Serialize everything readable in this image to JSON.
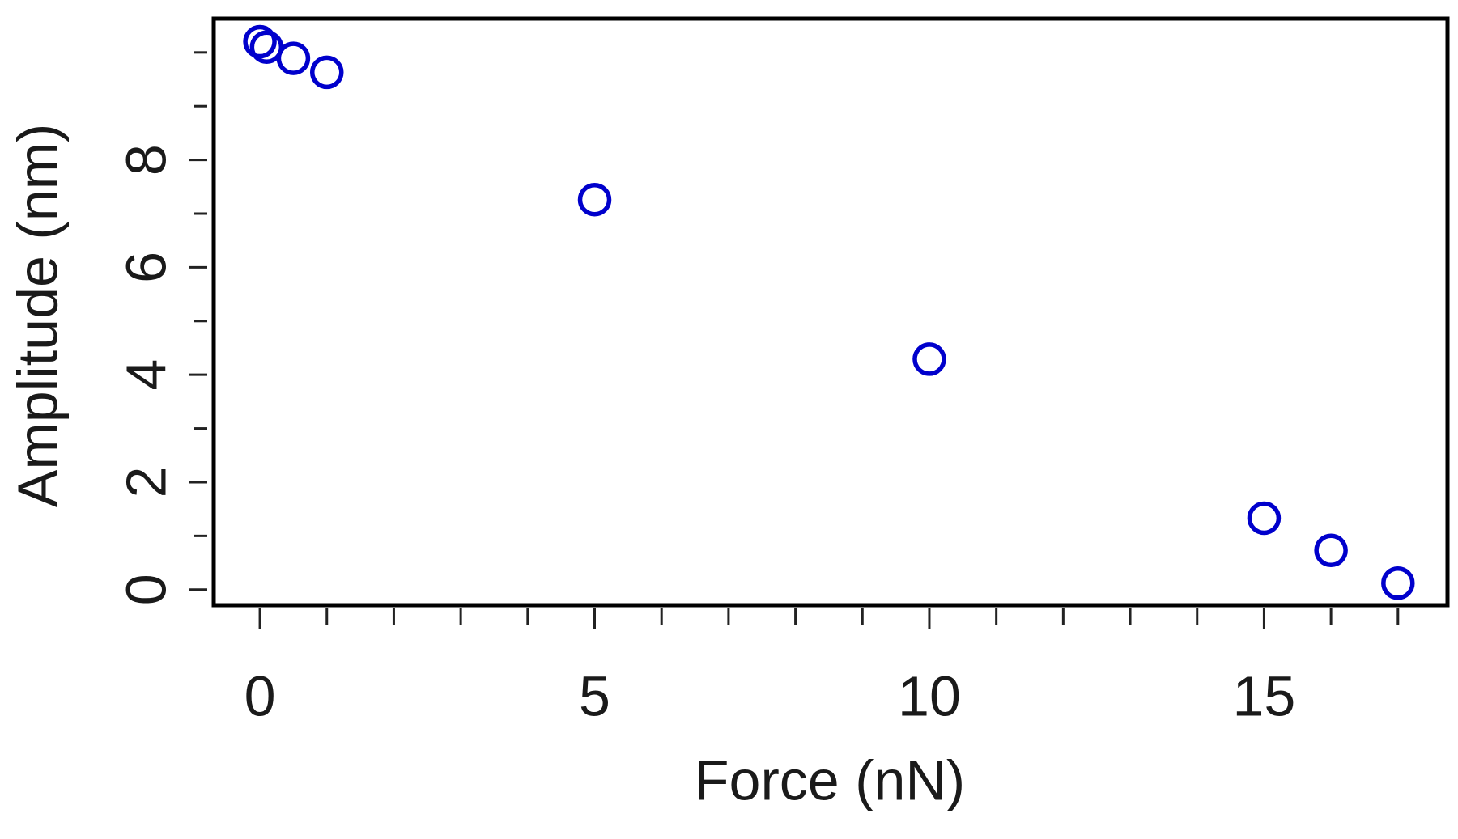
{
  "chart_data": {
    "type": "scatter",
    "x_label": "Force (nN)",
    "y_label": "Amplitude (nm)",
    "series": [
      {
        "color": "#0000cc",
        "x": [
          0,
          0.1,
          0.5,
          1,
          5,
          10,
          15,
          16,
          17
        ],
        "values": [
          10.2,
          10.1,
          9.89,
          9.63,
          7.26,
          4.29,
          1.33,
          0.73,
          0.12
        ]
      }
    ],
    "xlim": [
      -0.69,
      17.74
    ],
    "ylim": [
      -0.29,
      10.63
    ],
    "xticks": [
      0,
      5,
      10,
      15
    ],
    "yticks": [
      0,
      2,
      4,
      6,
      8
    ],
    "xminorticks": [
      1,
      2,
      3,
      4,
      6,
      7,
      8,
      9,
      11,
      12,
      13,
      14,
      16,
      17
    ],
    "yminorticks": [
      1,
      3,
      5,
      7,
      9,
      10
    ],
    "grid": false
  }
}
